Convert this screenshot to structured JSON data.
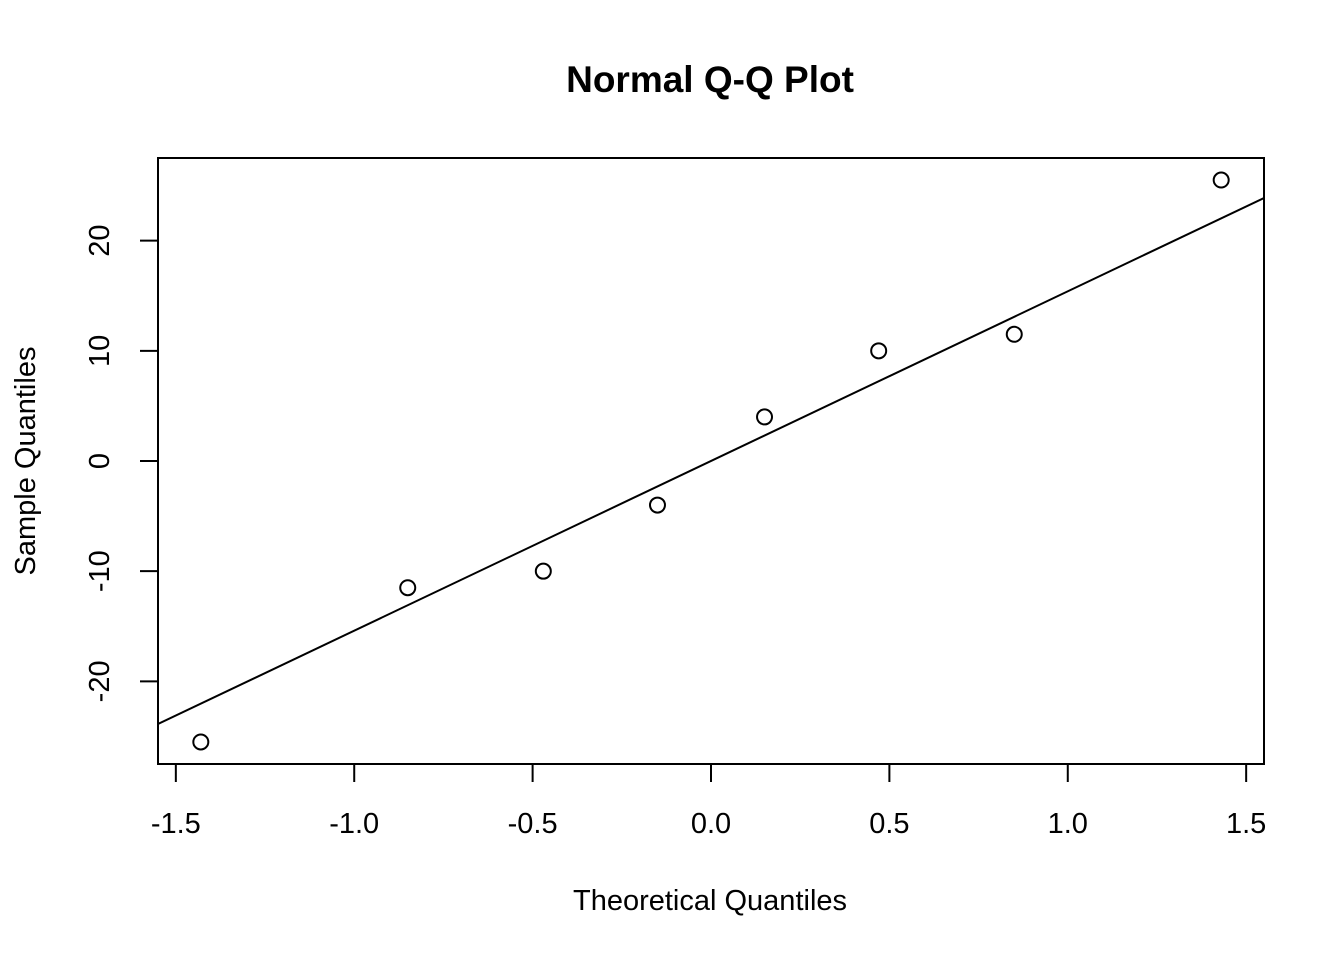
{
  "chart_data": {
    "type": "scatter",
    "title": "Normal Q-Q Plot",
    "xlabel": "Theoretical Quantiles",
    "ylabel": "Sample Quantiles",
    "xlim": [
      -1.55,
      1.55
    ],
    "ylim": [
      -27.5,
      27.5
    ],
    "x_ticks": [
      {
        "value": -1.5,
        "label": "-1.5"
      },
      {
        "value": -1.0,
        "label": "-1.0"
      },
      {
        "value": -0.5,
        "label": "-0.5"
      },
      {
        "value": 0.0,
        "label": "0.0"
      },
      {
        "value": 0.5,
        "label": "0.5"
      },
      {
        "value": 1.0,
        "label": "1.0"
      },
      {
        "value": 1.5,
        "label": "1.5"
      }
    ],
    "y_ticks": [
      {
        "value": -20,
        "label": "-20"
      },
      {
        "value": -10,
        "label": "-10"
      },
      {
        "value": 0,
        "label": "0"
      },
      {
        "value": 10,
        "label": "10"
      },
      {
        "value": 20,
        "label": "20"
      }
    ],
    "points": [
      {
        "x": -1.43,
        "y": -25.5
      },
      {
        "x": -0.85,
        "y": -11.5
      },
      {
        "x": -0.47,
        "y": -10.0
      },
      {
        "x": -0.15,
        "y": -4.0
      },
      {
        "x": 0.15,
        "y": 4.0
      },
      {
        "x": 0.47,
        "y": 10.0
      },
      {
        "x": 0.85,
        "y": 11.5
      },
      {
        "x": 1.43,
        "y": 25.5
      }
    ],
    "reference_line": {
      "intercept": 0,
      "slope": 15.4
    },
    "grid": false,
    "legend": "none",
    "colors": {
      "foreground": "#000000",
      "background": "#ffffff"
    }
  }
}
